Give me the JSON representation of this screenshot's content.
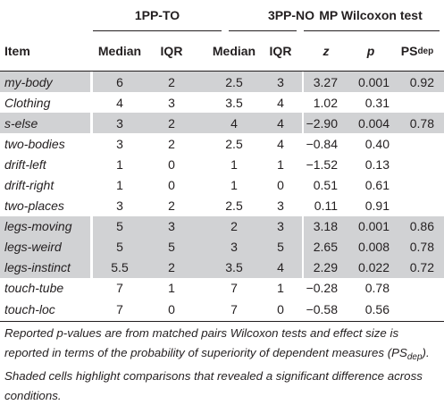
{
  "header": {
    "group1": "1PP-TO",
    "group2": "3PP-NO",
    "group3": "MP Wilcoxon test",
    "col_item": "Item",
    "col_median1": "Median",
    "col_iqr1": "IQR",
    "col_median2": "Median",
    "col_iqr2": "IQR",
    "col_z": "z",
    "col_p": "p",
    "col_ps": "PS",
    "col_ps_sub": "dep"
  },
  "rows": [
    {
      "item": "my-body",
      "m1": "6",
      "i1": "2",
      "m2": "2.5",
      "i2": "3",
      "z": "3.27",
      "p": "0.001",
      "ps": "0.92",
      "shaded": true
    },
    {
      "item": "Clothing",
      "m1": "4",
      "i1": "3",
      "m2": "3.5",
      "i2": "4",
      "z": "1.02",
      "p": "0.31",
      "ps": "",
      "shaded": false
    },
    {
      "item": "s-else",
      "m1": "3",
      "i1": "2",
      "m2": "4",
      "i2": "4",
      "z": "−2.90",
      "p": "0.004",
      "ps": "0.78",
      "shaded": true
    },
    {
      "item": "two-bodies",
      "m1": "3",
      "i1": "2",
      "m2": "2.5",
      "i2": "4",
      "z": "−0.84",
      "p": "0.40",
      "ps": "",
      "shaded": false
    },
    {
      "item": "drift-left",
      "m1": "1",
      "i1": "0",
      "m2": "1",
      "i2": "1",
      "z": "−1.52",
      "p": "0.13",
      "ps": "",
      "shaded": false
    },
    {
      "item": "drift-right",
      "m1": "1",
      "i1": "0",
      "m2": "1",
      "i2": "0",
      "z": "0.51",
      "p": "0.61",
      "ps": "",
      "shaded": false
    },
    {
      "item": "two-places",
      "m1": "3",
      "i1": "2",
      "m2": "2.5",
      "i2": "3",
      "z": "0.11",
      "p": "0.91",
      "ps": "",
      "shaded": false
    },
    {
      "item": "legs-moving",
      "m1": "5",
      "i1": "3",
      "m2": "2",
      "i2": "3",
      "z": "3.18",
      "p": "0.001",
      "ps": "0.86",
      "shaded": true
    },
    {
      "item": "legs-weird",
      "m1": "5",
      "i1": "5",
      "m2": "3",
      "i2": "5",
      "z": "2.65",
      "p": "0.008",
      "ps": "0.78",
      "shaded": true
    },
    {
      "item": "legs-instinct",
      "m1": "5.5",
      "i1": "2",
      "m2": "3.5",
      "i2": "4",
      "z": "2.29",
      "p": "0.022",
      "ps": "0.72",
      "shaded": true
    },
    {
      "item": "touch-tube",
      "m1": "7",
      "i1": "1",
      "m2": "7",
      "i2": "1",
      "z": "−0.28",
      "p": "0.78",
      "ps": "",
      "shaded": false
    },
    {
      "item": "touch-loc",
      "m1": "7",
      "i1": "0",
      "m2": "7",
      "i2": "0",
      "z": "−0.58",
      "p": "0.56",
      "ps": "",
      "shaded": false
    }
  ],
  "footnote": {
    "part1": "Reported p-values are from matched pairs Wilcoxon tests and effect size is reported in terms of the probability of superiority of dependent measures (PS",
    "sub": "dep",
    "part2": "). Shaded cells highlight comparisons that revealed a significant difference across conditions."
  }
}
